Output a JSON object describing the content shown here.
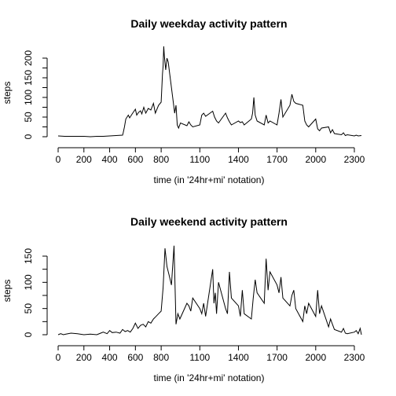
{
  "chart_data": [
    {
      "type": "line",
      "title": "Daily weekday activity pattern",
      "xlabel": "time (in '24hr+mi' notation)",
      "ylabel": "steps",
      "xlim": [
        0,
        2355
      ],
      "ylim": [
        0,
        230
      ],
      "x_ticks": [
        0,
        200,
        400,
        600,
        800,
        1100,
        1400,
        1700,
        2000,
        2300
      ],
      "x_tick_labels": [
        "0",
        "200",
        "400",
        "600",
        "800",
        "1100",
        "1400",
        "1700",
        "2000",
        "2300"
      ],
      "y_ticks": [
        0,
        50,
        100,
        150,
        200
      ],
      "y_tick_labels": [
        "0",
        "50",
        "100",
        "150",
        "200"
      ],
      "y_minor_ticks": [
        25,
        75,
        125,
        175
      ],
      "series": [
        {
          "x": [
            0,
            50,
            100,
            150,
            200,
            250,
            300,
            350,
            400,
            450,
            500,
            505,
            515,
            525,
            545,
            555,
            575,
            600,
            610,
            625,
            640,
            650,
            665,
            680,
            700,
            720,
            740,
            755,
            780,
            800,
            810,
            815,
            820,
            825,
            835,
            845,
            855,
            905,
            915,
            925,
            935,
            950,
            1000,
            1015,
            1030,
            1045,
            1100,
            1115,
            1130,
            1145,
            1200,
            1215,
            1230,
            1245,
            1300,
            1315,
            1330,
            1345,
            1400,
            1415,
            1430,
            1445,
            1500,
            1510,
            1520,
            1530,
            1545,
            1600,
            1615,
            1630,
            1645,
            1700,
            1715,
            1730,
            1745,
            1800,
            1815,
            1830,
            1845,
            1900,
            1915,
            1930,
            1945,
            2000,
            2015,
            2030,
            2045,
            2100,
            2115,
            2130,
            2145,
            2200,
            2215,
            2230,
            2245,
            2300,
            2315,
            2330,
            2355
          ],
          "y": [
            2,
            1,
            1,
            1,
            1,
            0,
            1,
            1,
            2,
            3,
            4,
            10,
            25,
            45,
            55,
            48,
            58,
            70,
            55,
            62,
            66,
            58,
            75,
            60,
            72,
            68,
            85,
            60,
            80,
            88,
            160,
            180,
            230,
            205,
            170,
            200,
            190,
            60,
            80,
            30,
            22,
            35,
            28,
            38,
            30,
            25,
            30,
            55,
            60,
            52,
            65,
            50,
            40,
            35,
            60,
            48,
            38,
            30,
            40,
            36,
            38,
            30,
            45,
            60,
            100,
            55,
            40,
            30,
            55,
            35,
            40,
            30,
            60,
            95,
            50,
            80,
            108,
            90,
            85,
            80,
            40,
            30,
            25,
            45,
            20,
            15,
            22,
            25,
            10,
            18,
            8,
            5,
            10,
            3,
            5,
            2,
            4,
            2,
            3
          ]
        }
      ],
      "grid": false
    },
    {
      "type": "line",
      "title": "Daily weekend activity pattern",
      "xlabel": "time (in '24hr+mi' notation)",
      "ylabel": "steps",
      "xlim": [
        0,
        2355
      ],
      "ylim": [
        0,
        175
      ],
      "x_ticks": [
        0,
        200,
        400,
        600,
        800,
        1100,
        1400,
        1700,
        2000,
        2300
      ],
      "x_tick_labels": [
        "0",
        "200",
        "400",
        "600",
        "800",
        "1100",
        "1400",
        "1700",
        "2000",
        "2300"
      ],
      "y_ticks": [
        0,
        50,
        100,
        150
      ],
      "y_tick_labels": [
        "0",
        "50",
        "100",
        "150"
      ],
      "y_minor_ticks": [
        25,
        75,
        125
      ],
      "series": [
        {
          "x": [
            0,
            20,
            40,
            60,
            100,
            150,
            200,
            250,
            300,
            330,
            350,
            380,
            400,
            420,
            450,
            480,
            500,
            520,
            540,
            560,
            580,
            600,
            620,
            640,
            660,
            680,
            700,
            720,
            740,
            760,
            780,
            800,
            815,
            830,
            845,
            860,
            880,
            900,
            915,
            930,
            945,
            1000,
            1015,
            1030,
            1045,
            1100,
            1115,
            1130,
            1145,
            1200,
            1210,
            1220,
            1230,
            1245,
            1300,
            1315,
            1330,
            1345,
            1400,
            1415,
            1430,
            1445,
            1500,
            1515,
            1530,
            1545,
            1600,
            1615,
            1630,
            1645,
            1700,
            1715,
            1730,
            1745,
            1800,
            1815,
            1830,
            1845,
            1900,
            1915,
            1930,
            1945,
            2000,
            2015,
            2030,
            2045,
            2100,
            2115,
            2130,
            2145,
            2200,
            2215,
            2230,
            2245,
            2300,
            2315,
            2330,
            2345,
            2355
          ],
          "y": [
            0,
            2,
            0,
            1,
            3,
            2,
            0,
            1,
            0,
            3,
            5,
            2,
            8,
            4,
            5,
            3,
            10,
            6,
            8,
            5,
            12,
            22,
            12,
            18,
            20,
            15,
            25,
            22,
            30,
            35,
            40,
            45,
            90,
            165,
            130,
            115,
            95,
            170,
            20,
            40,
            30,
            60,
            55,
            45,
            70,
            50,
            40,
            60,
            35,
            125,
            60,
            80,
            40,
            100,
            50,
            40,
            120,
            70,
            55,
            35,
            85,
            40,
            30,
            70,
            105,
            80,
            60,
            145,
            85,
            120,
            95,
            80,
            110,
            70,
            55,
            75,
            85,
            50,
            25,
            55,
            40,
            60,
            35,
            85,
            40,
            55,
            15,
            30,
            20,
            10,
            5,
            12,
            3,
            2,
            5,
            8,
            2,
            12,
            0
          ]
        }
      ],
      "grid": false
    }
  ]
}
